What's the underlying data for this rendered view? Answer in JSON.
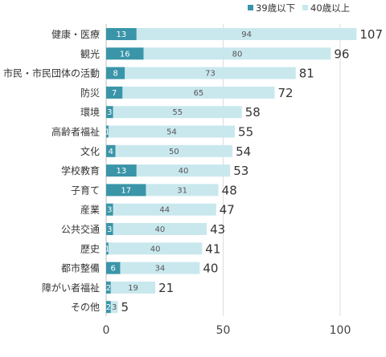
{
  "chart_data": {
    "type": "bar",
    "orientation": "horizontal",
    "stacked": true,
    "title": "",
    "xlabel": "",
    "ylabel": "",
    "xlim": [
      0,
      110
    ],
    "xticks": [
      0,
      50,
      100
    ],
    "grid": true,
    "legend": "top-right",
    "categories": [
      "健康・医療",
      "観光",
      "市民・市民団体の活動",
      "防災",
      "環境",
      "高齢者福祉",
      "文化",
      "学校教育",
      "子育て",
      "産業",
      "公共交通",
      "歴史",
      "都市整備",
      "障がい者福祉",
      "その他"
    ],
    "series": [
      {
        "name": "39歳以下",
        "color": "#3a95a8",
        "label_color": "#ffffff",
        "values": [
          13,
          16,
          8,
          7,
          3,
          1,
          4,
          13,
          17,
          3,
          3,
          1,
          6,
          2,
          2
        ]
      },
      {
        "name": "40歳以上",
        "color": "#c9e8ee",
        "label_color": "#555555",
        "values": [
          94,
          80,
          73,
          65,
          55,
          54,
          50,
          40,
          31,
          44,
          40,
          40,
          34,
          19,
          3
        ]
      }
    ],
    "totals": [
      107,
      96,
      81,
      72,
      58,
      55,
      54,
      53,
      48,
      47,
      43,
      41,
      40,
      21,
      5
    ]
  }
}
